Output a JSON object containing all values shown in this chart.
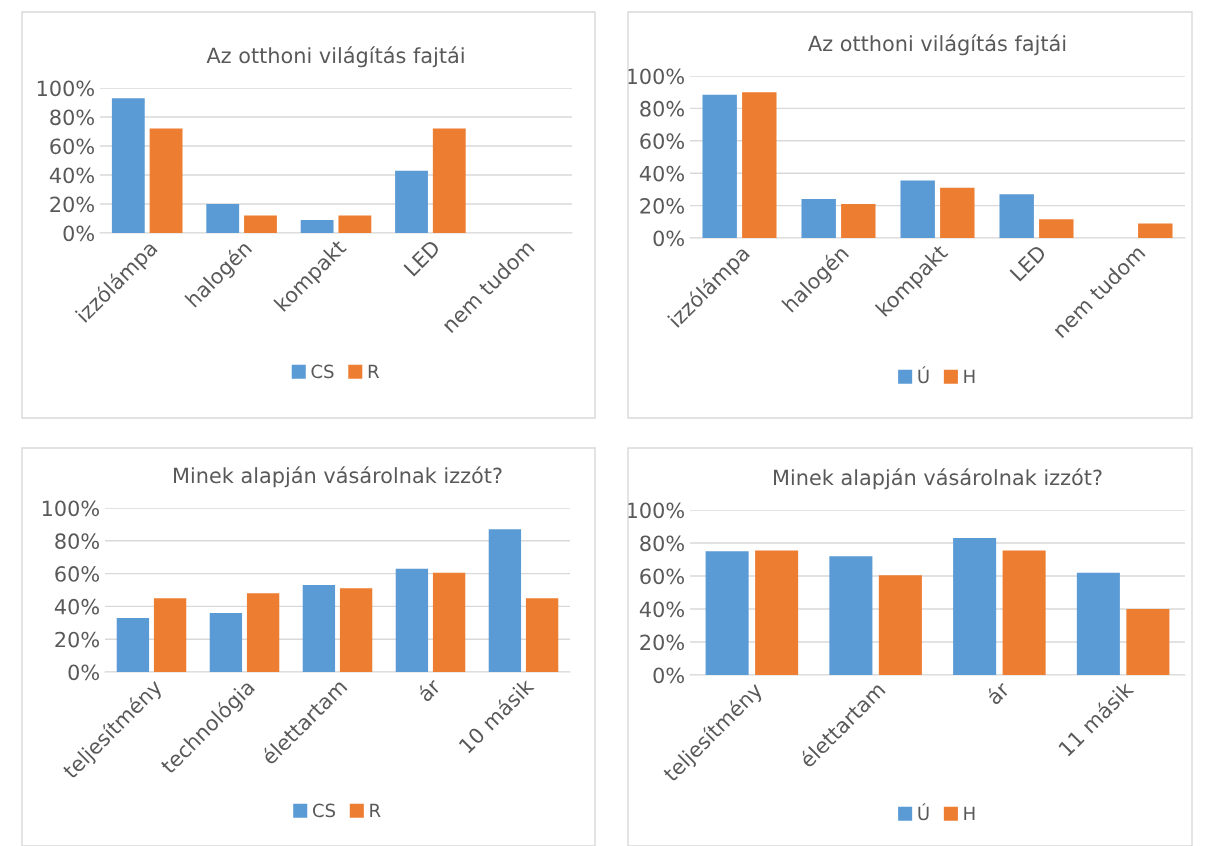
{
  "chart_data": [
    {
      "type": "bar",
      "title": "Az otthoni világítás fajtái",
      "categories": [
        "izzólámpa",
        "halogén",
        "kompakt",
        "LED",
        "nem tudom"
      ],
      "series": [
        {
          "name": "CS",
          "color": "#5b9bd5",
          "values": [
            93,
            20,
            9,
            43,
            null
          ]
        },
        {
          "name": "R",
          "color": "#ed7d31",
          "values": [
            72,
            12,
            12,
            72,
            null
          ]
        }
      ],
      "ylim": [
        0,
        100
      ],
      "yticks": [
        {
          "value": 0,
          "label": "0%"
        },
        {
          "value": 20,
          "label": "20%"
        },
        {
          "value": 40,
          "label": "40%"
        },
        {
          "value": 60,
          "label": "60%"
        },
        {
          "value": 80,
          "label": "80%"
        },
        {
          "value": 100,
          "label": "100%"
        }
      ],
      "grid": "y",
      "legend": "bottom"
    },
    {
      "type": "bar",
      "title": "Az otthoni világítás fajtái",
      "categories": [
        "izzólámpa",
        "halogén",
        "kompakt",
        "LED",
        "nem tudom"
      ],
      "series": [
        {
          "name": "Ú",
          "color": "#5b9bd5",
          "values": [
            88.5,
            24,
            35.5,
            27,
            null
          ]
        },
        {
          "name": "H",
          "color": "#ed7d31",
          "values": [
            90,
            21,
            31,
            11.5,
            9
          ]
        }
      ],
      "ylim": [
        0,
        100
      ],
      "yticks": [
        {
          "value": 0,
          "label": "0%"
        },
        {
          "value": 20,
          "label": "20%"
        },
        {
          "value": 40,
          "label": "40%"
        },
        {
          "value": 60,
          "label": "60%"
        },
        {
          "value": 80,
          "label": "80%"
        },
        {
          "value": 100,
          "label": "100%"
        }
      ],
      "grid": "y",
      "legend": "bottom"
    },
    {
      "type": "bar",
      "title": "Minek alapján vásárolnak izzót?",
      "categories": [
        "teljesítmény",
        "technológia",
        "élettartam",
        "ár",
        "10 másik"
      ],
      "series": [
        {
          "name": "CS",
          "color": "#5b9bd5",
          "values": [
            33,
            36,
            53,
            63,
            87
          ]
        },
        {
          "name": "R",
          "color": "#ed7d31",
          "values": [
            45,
            48,
            51,
            60.5,
            45
          ]
        }
      ],
      "ylim": [
        0,
        100
      ],
      "yticks": [
        {
          "value": 0,
          "label": "0%"
        },
        {
          "value": 20,
          "label": "20%"
        },
        {
          "value": 40,
          "label": "40%"
        },
        {
          "value": 60,
          "label": "60%"
        },
        {
          "value": 80,
          "label": "80%"
        },
        {
          "value": 100,
          "label": "100%"
        }
      ],
      "grid": "y",
      "legend": "bottom"
    },
    {
      "type": "bar",
      "title": "Minek alapján vásárolnak izzót?",
      "categories": [
        "teljesítmény",
        "élettartam",
        "ár",
        "11 másik"
      ],
      "series": [
        {
          "name": "Ú",
          "color": "#5b9bd5",
          "values": [
            75,
            72,
            83,
            62
          ]
        },
        {
          "name": "H",
          "color": "#ed7d31",
          "values": [
            75.5,
            60.5,
            75.5,
            40
          ]
        }
      ],
      "ylim": [
        0,
        100
      ],
      "yticks": [
        {
          "value": 0,
          "label": "0%"
        },
        {
          "value": 20,
          "label": "20%"
        },
        {
          "value": 40,
          "label": "40%"
        },
        {
          "value": 60,
          "label": "60%"
        },
        {
          "value": 80,
          "label": "80%"
        },
        {
          "value": 100,
          "label": "100%"
        }
      ],
      "grid": "y",
      "legend": "bottom"
    }
  ]
}
